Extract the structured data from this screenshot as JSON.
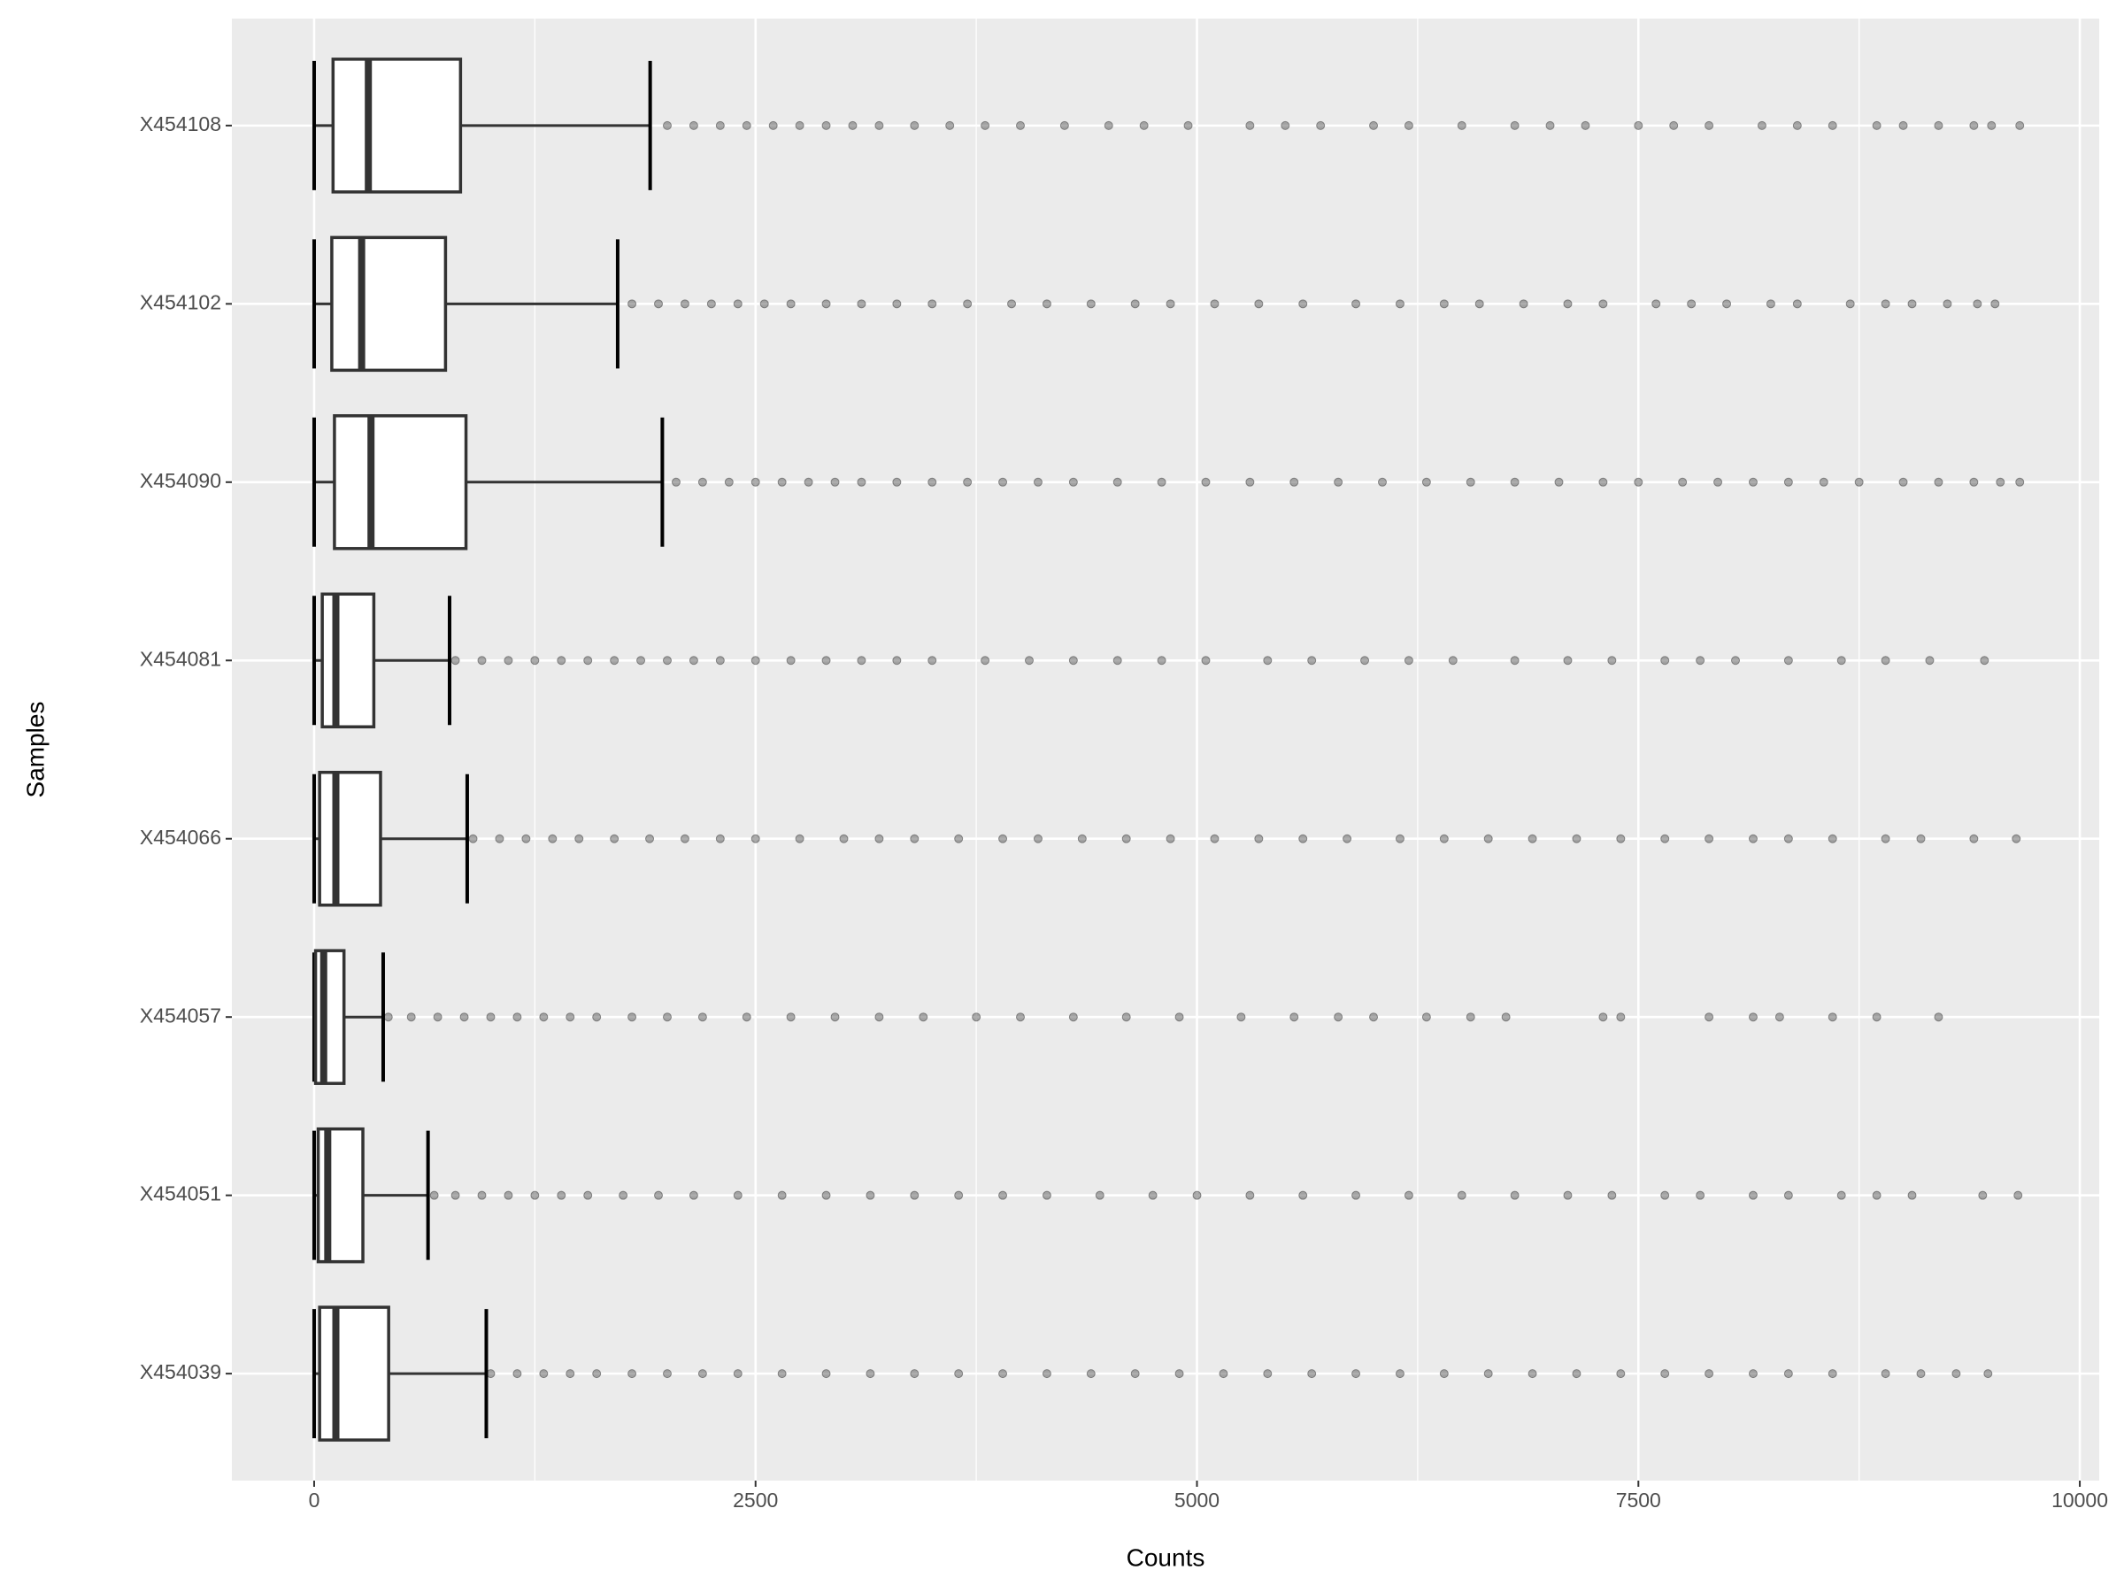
{
  "chart_data": {
    "type": "boxplot",
    "x_label": "Counts",
    "y_label": "Samples",
    "categories": [
      "X454108",
      "X454102",
      "X454090",
      "X454081",
      "X454066",
      "X454057",
      "X454051",
      "X454039"
    ],
    "boxes": [
      {
        "whisker_low": 0,
        "q1": 107,
        "median": 307,
        "q3": 829,
        "whisker_high": 1903,
        "outliers": [
          2000,
          2150,
          2300,
          2450,
          2600,
          2750,
          2900,
          3050,
          3200,
          3400,
          3600,
          3800,
          4000,
          4250,
          4500,
          4700,
          4950,
          5300,
          5500,
          5700,
          6000,
          6200,
          6500,
          6800,
          7000,
          7200,
          7500,
          7700,
          7900,
          8200,
          8400,
          8600,
          8850,
          9000,
          9200,
          9400,
          9500,
          9660
        ]
      },
      {
        "whisker_low": 0,
        "q1": 100,
        "median": 269,
        "q3": 744,
        "whisker_high": 1719,
        "outliers": [
          1800,
          1950,
          2100,
          2250,
          2400,
          2550,
          2700,
          2900,
          3100,
          3300,
          3500,
          3700,
          3950,
          4150,
          4400,
          4650,
          4850,
          5100,
          5350,
          5600,
          5900,
          6150,
          6400,
          6600,
          6850,
          7100,
          7300,
          7600,
          7800,
          8000,
          8250,
          8400,
          8700,
          8900,
          9050,
          9250,
          9420,
          9520
        ]
      },
      {
        "whisker_low": 0,
        "q1": 115,
        "median": 322,
        "q3": 860,
        "whisker_high": 1972,
        "outliers": [
          2050,
          2200,
          2350,
          2500,
          2650,
          2800,
          2950,
          3100,
          3300,
          3500,
          3700,
          3900,
          4100,
          4300,
          4550,
          4800,
          5050,
          5300,
          5550,
          5800,
          6050,
          6300,
          6550,
          6800,
          7050,
          7300,
          7500,
          7750,
          7950,
          8150,
          8350,
          8550,
          8750,
          9000,
          9200,
          9400,
          9550,
          9660
        ]
      },
      {
        "whisker_low": 0,
        "q1": 46,
        "median": 123,
        "q3": 338,
        "whisker_high": 767,
        "outliers": [
          800,
          950,
          1100,
          1250,
          1400,
          1550,
          1700,
          1850,
          2000,
          2150,
          2300,
          2500,
          2700,
          2900,
          3100,
          3300,
          3500,
          3800,
          4050,
          4300,
          4550,
          4800,
          5050,
          5400,
          5650,
          5950,
          6200,
          6450,
          6800,
          7100,
          7350,
          7650,
          7850,
          8050,
          8350,
          8650,
          8900,
          9150,
          9460
        ]
      },
      {
        "whisker_low": 0,
        "q1": 31,
        "median": 123,
        "q3": 376,
        "whisker_high": 867,
        "outliers": [
          900,
          1050,
          1200,
          1350,
          1500,
          1700,
          1900,
          2100,
          2300,
          2500,
          2750,
          3000,
          3200,
          3400,
          3650,
          3900,
          4100,
          4350,
          4600,
          4850,
          5100,
          5350,
          5600,
          5850,
          6150,
          6400,
          6650,
          6900,
          7150,
          7400,
          7650,
          7900,
          8150,
          8350,
          8600,
          8900,
          9100,
          9400,
          9640
        ]
      },
      {
        "whisker_low": 0,
        "q1": 8,
        "median": 54,
        "q3": 169,
        "whisker_high": 391,
        "outliers": [
          420,
          550,
          700,
          850,
          1000,
          1150,
          1300,
          1450,
          1600,
          1800,
          2000,
          2200,
          2450,
          2700,
          2950,
          3200,
          3450,
          3750,
          4000,
          4300,
          4600,
          4900,
          5250,
          5550,
          5800,
          6000,
          6300,
          6550,
          6750,
          7300,
          7400,
          7900,
          8150,
          8300,
          8600,
          8850,
          9200
        ]
      },
      {
        "whisker_low": 0,
        "q1": 23,
        "median": 77,
        "q3": 276,
        "whisker_high": 645,
        "outliers": [
          680,
          800,
          950,
          1100,
          1250,
          1400,
          1550,
          1750,
          1950,
          2150,
          2400,
          2650,
          2900,
          3150,
          3400,
          3650,
          3900,
          4150,
          4450,
          4750,
          5000,
          5300,
          5600,
          5900,
          6200,
          6500,
          6800,
          7100,
          7350,
          7650,
          7850,
          8150,
          8350,
          8650,
          8850,
          9050,
          9450,
          9650
        ]
      },
      {
        "whisker_low": 0,
        "q1": 31,
        "median": 123,
        "q3": 422,
        "whisker_high": 975,
        "outliers": [
          1000,
          1150,
          1300,
          1450,
          1600,
          1800,
          2000,
          2200,
          2400,
          2650,
          2900,
          3150,
          3400,
          3650,
          3900,
          4150,
          4400,
          4650,
          4900,
          5150,
          5400,
          5650,
          5900,
          6150,
          6400,
          6650,
          6900,
          7150,
          7400,
          7650,
          7900,
          8150,
          8350,
          8600,
          8900,
          9100,
          9300,
          9480
        ]
      }
    ],
    "xlim": [
      -466,
      10110
    ],
    "xticks": [
      0,
      2500,
      5000,
      7500,
      10000
    ],
    "grid": true,
    "box_color": "#333333",
    "box_fill": "#ffffff",
    "outlier_color": "#333333",
    "panel_color": "#ebebeb"
  }
}
